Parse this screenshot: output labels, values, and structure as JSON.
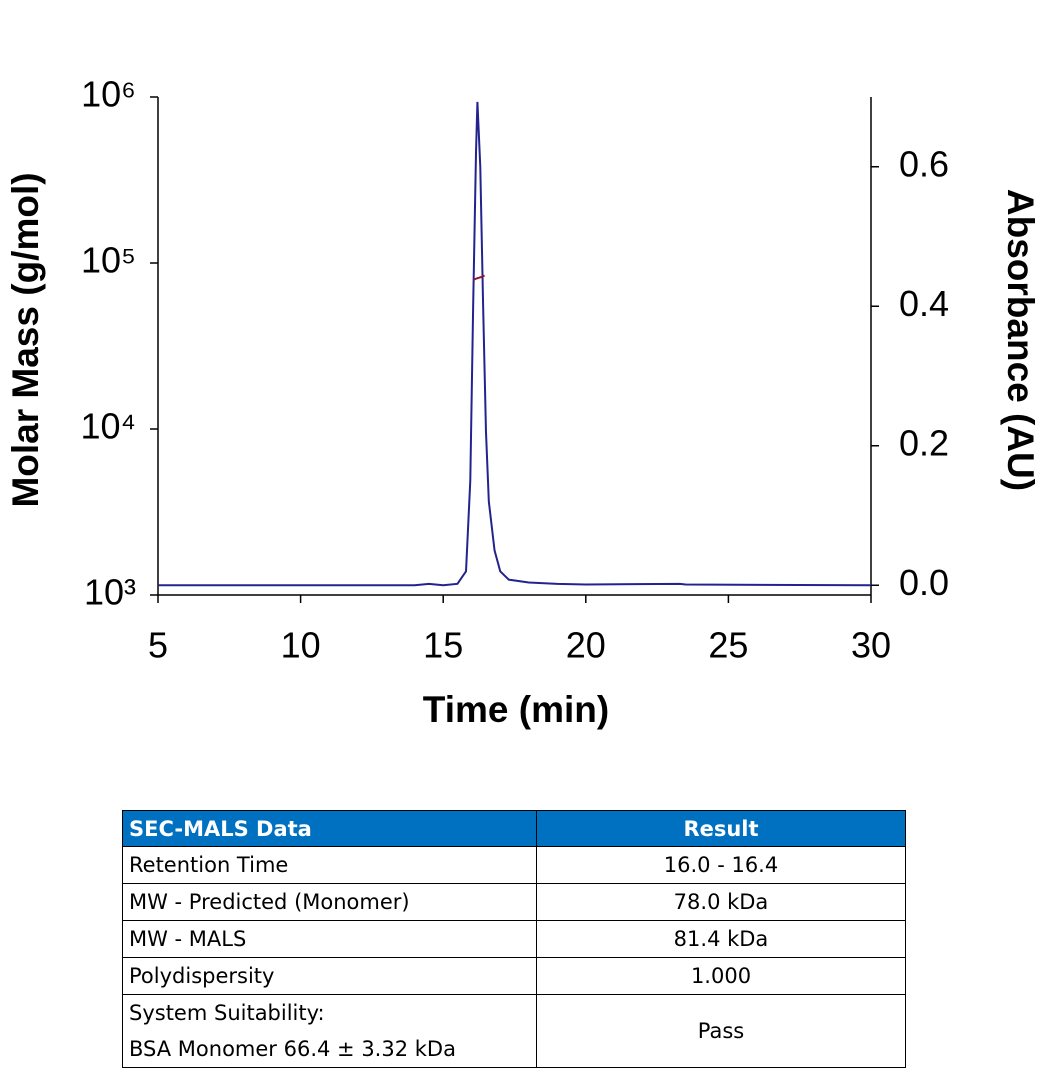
{
  "chart_data": {
    "type": "line",
    "xlabel": "Time (min)",
    "ylabel": "Molar Mass (g/mol)",
    "y2label": "Absorbance (AU)",
    "xlim": [
      5,
      30
    ],
    "xticks": [
      5,
      10,
      15,
      20,
      25,
      30
    ],
    "ylim": [
      1000,
      1000000
    ],
    "yscale": "log",
    "yticks": [
      {
        "value": 1000,
        "label": "10³"
      },
      {
        "value": 10000,
        "label": "10⁴"
      },
      {
        "value": 100000,
        "label": "10⁵"
      },
      {
        "value": 1000000,
        "label": "10⁶"
      }
    ],
    "y2lim": [
      -0.014,
      0.7
    ],
    "y2ticks": [
      {
        "value": 0,
        "label": "0.0"
      },
      0.2,
      0.4,
      0.6
    ],
    "grid": false,
    "series": [
      {
        "color": "#23238e",
        "axis": "y2",
        "x": [
          5,
          14.0,
          14.5,
          15.0,
          15.5,
          15.8,
          15.95,
          16.05,
          16.15,
          16.2,
          16.3,
          16.4,
          16.5,
          16.6,
          16.8,
          17.0,
          17.3,
          18,
          19,
          20,
          23.3,
          23.5,
          30
        ],
        "values": [
          0.0,
          0.0,
          0.002,
          0.0,
          0.002,
          0.02,
          0.15,
          0.4,
          0.62,
          0.693,
          0.6,
          0.4,
          0.22,
          0.12,
          0.05,
          0.02,
          0.008,
          0.004,
          0.002,
          0.001,
          0.002,
          0.001,
          0.0
        ]
      },
      {
        "color": "#8b1a2a",
        "x": [
          16.05,
          16.15,
          16.25,
          16.35,
          16.45
        ],
        "values": [
          79000,
          80500,
          81400,
          82500,
          84000
        ]
      }
    ]
  },
  "table": {
    "header": [
      "SEC-MALS Data",
      "Result"
    ],
    "rows": [
      [
        [
          "Retention Time"
        ],
        "16.0 - 16.4"
      ],
      [
        [
          "MW - Predicted (Monomer)"
        ],
        "78.0 kDa"
      ],
      [
        [
          "MW - MALS"
        ],
        "81.4 kDa"
      ],
      [
        [
          "Polydispersity"
        ],
        "1.000"
      ],
      [
        [
          "System Suitability:",
          "BSA Monomer 66.4 ± 3.32 kDa"
        ],
        "Pass"
      ]
    ]
  }
}
